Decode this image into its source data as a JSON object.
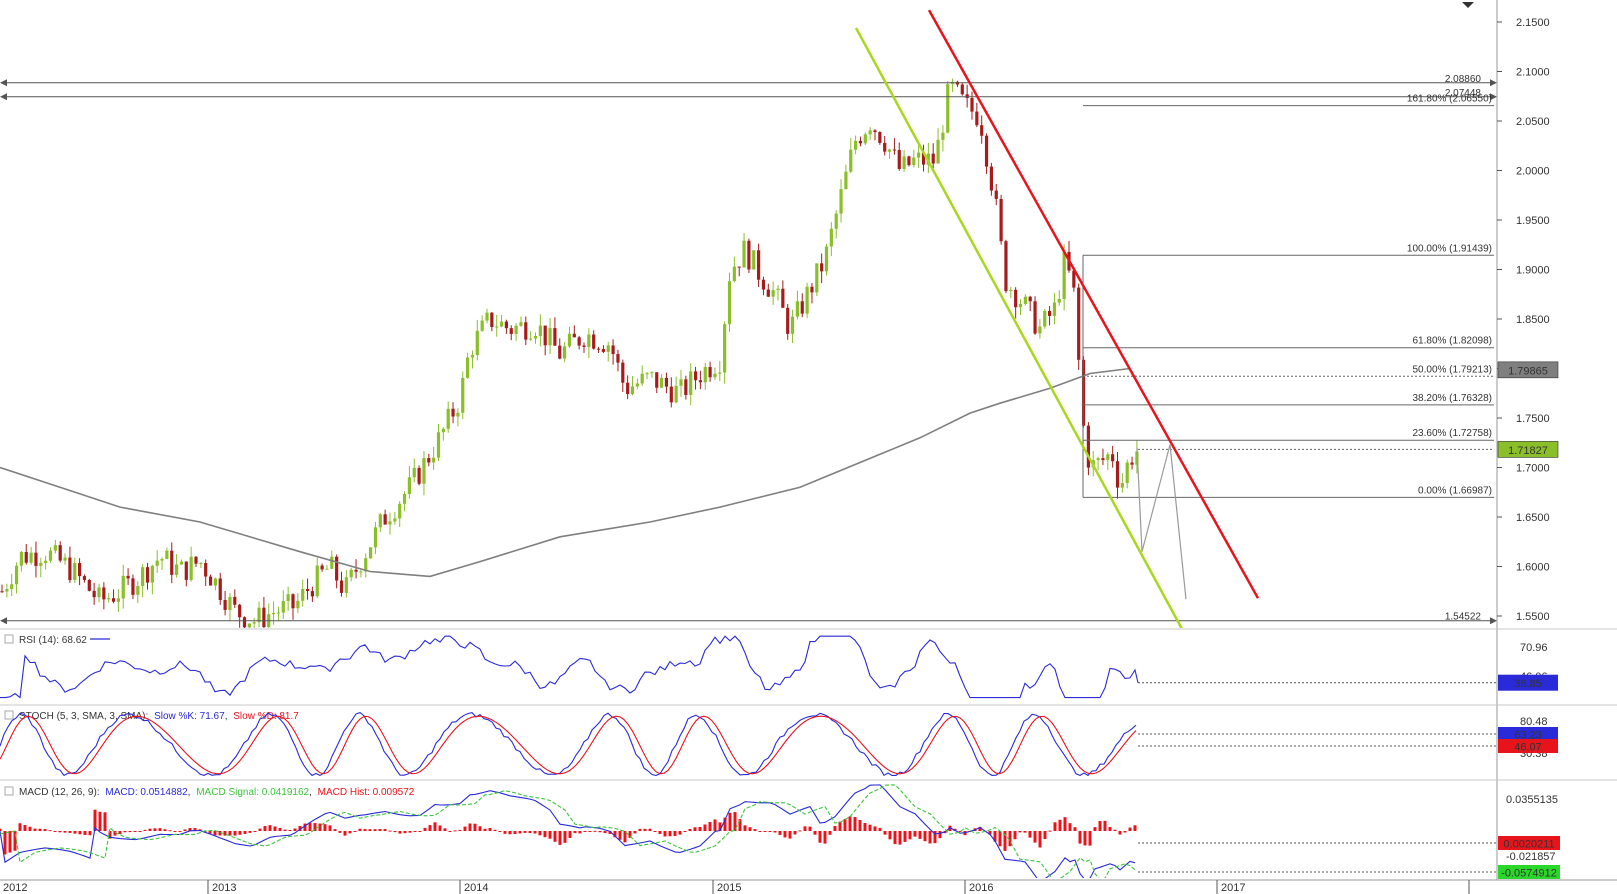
{
  "chart_data": {
    "type": "candlestick",
    "x_axis": {
      "tick_labels": [
        "2012",
        "2013",
        "2014",
        "2015",
        "2016",
        "2017"
      ]
    },
    "price_axis": {
      "range": [
        1.53,
        2.16
      ],
      "tick_labels": [
        "2.1500",
        "2.1000",
        "2.0500",
        "2.0000",
        "1.9500",
        "1.9000",
        "1.8500",
        "1.8000",
        "1.7500",
        "1.7000",
        "1.6500",
        "1.6000",
        "1.5500"
      ],
      "tick_values": [
        2.15,
        2.1,
        2.05,
        2.0,
        1.95,
        1.9,
        1.85,
        1.8,
        1.75,
        1.7,
        1.65,
        1.6,
        1.55
      ],
      "badges": [
        {
          "label": "1.79865",
          "value": 1.79865,
          "color": "#7f7f7f"
        },
        {
          "label": "1.71827",
          "value": 1.71827,
          "color": "#8bbf2a"
        }
      ]
    },
    "horizontal_levels": [
      {
        "label": "2.08860",
        "value": 2.0886
      },
      {
        "label": "2.07448",
        "value": 2.07448
      },
      {
        "label": "1.54522",
        "value": 1.54522
      }
    ],
    "fibonacci": [
      {
        "label": "161.80% (2.06550)",
        "value": 2.0655
      },
      {
        "label": "100.00% (1.91439)",
        "value": 1.91439
      },
      {
        "label": "61.80% (1.82098)",
        "value": 1.82098
      },
      {
        "label": "50.00% (1.79213)",
        "value": 1.79213
      },
      {
        "label": "38.20% (1.76328)",
        "value": 1.76328
      },
      {
        "label": "23.60% (1.72758)",
        "value": 1.72758
      },
      {
        "label": "0.00% (1.66987)",
        "value": 1.66987
      }
    ],
    "colors": {
      "up": "#8bbf2a",
      "down": "#a61c1c",
      "ma": "#7f7f7f",
      "upper_trend": "#e8141c",
      "lower_trend": "#a8d81e",
      "rsi": "#2a2ad8",
      "stoch_k": "#2a2ad8",
      "stoch_d": "#e8141c",
      "macd": "#2a2ad8",
      "macd_signal": "#3ec43e",
      "macd_hist": "#e8141c"
    },
    "rsi": {
      "label": "RSI (14): 68.62",
      "tick_labels": [
        "70.96",
        "46.06"
      ],
      "badge": "38.85",
      "range": [
        20,
        85
      ],
      "last": 38.85
    },
    "stochastic": {
      "label_prefix": "STOCH (5, 3, SMA, 3, SMA):",
      "k_label": "Slow %K: 71.67",
      "d_label": "Slow %D: 81.7",
      "tick_labels": [
        "80.48",
        "30.38"
      ],
      "badges": [
        {
          "label": "63.23",
          "color": "#2a2ad8"
        },
        {
          "label": "46.07",
          "color": "#e8141c"
        }
      ],
      "range": [
        10,
        95
      ]
    },
    "macd": {
      "label_prefix": "MACD (12, 26, 9):",
      "macd_label": "MACD: 0.0514882",
      "signal_label": "MACD Signal: 0.0419162",
      "hist_label": "MACD Hist: 0.009572",
      "tick_labels": [
        "0.0355135",
        "-0.021857"
      ],
      "badges": [
        {
          "label": "0.0020211",
          "color": "#e8141c"
        },
        {
          "label": "-0.0574912",
          "color": "#2ad82a"
        }
      ],
      "range": [
        -0.07,
        0.07
      ]
    }
  }
}
